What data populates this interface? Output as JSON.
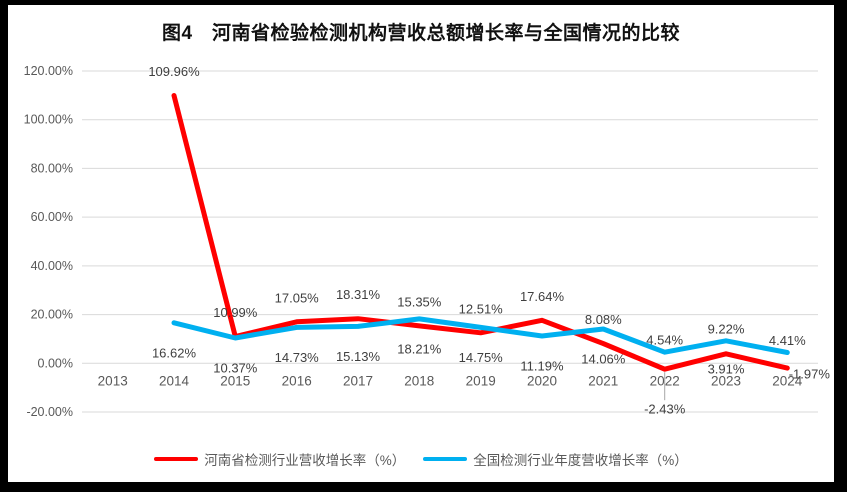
{
  "title": "图4　河南省检验检测机构营收总额增长率与全国情况的比较",
  "style": {
    "surround_background": "#000000",
    "panel_background": "#FFFFFF",
    "gridline_color": "#D9D9D9",
    "leader_line_color": "#A6A6A6",
    "data_label_color": "#3F3F3F",
    "axis_label_color": "#595959",
    "henan_red": "#FF0000",
    "national_blue": "#00B0F0"
  },
  "chart_data": {
    "type": "line",
    "title": "图4　河南省检验检测机构营收总额增长率与全国情况的比较",
    "categories": [
      "2013",
      "2014",
      "2015",
      "2016",
      "2017",
      "2018",
      "2019",
      "2020",
      "2021",
      "2022",
      "2023",
      "2024"
    ],
    "series": [
      {
        "name": "河南省检测行业营收增长率（%）",
        "color": "#FF0000",
        "values": [
          null,
          109.96,
          10.99,
          17.05,
          18.31,
          15.35,
          12.51,
          17.64,
          8.08,
          -2.43,
          3.91,
          -1.97
        ],
        "labels": [
          null,
          "109.96%",
          "10.99%",
          "17.05%",
          "18.31%",
          "15.35%",
          "12.51%",
          "17.64%",
          "8.08%",
          "-2.43%",
          "3.91%",
          "-1.97%"
        ],
        "label_placement": [
          null,
          "above",
          "above",
          "above",
          "above",
          "above",
          "above",
          "above",
          "above",
          "below-leader",
          "below-close",
          "right"
        ]
      },
      {
        "name": "全国检测行业年度营收增长率（%）",
        "color": "#00B0F0",
        "values": [
          null,
          16.62,
          10.37,
          14.73,
          15.13,
          18.21,
          14.75,
          11.19,
          14.06,
          4.54,
          9.22,
          4.41
        ],
        "labels": [
          null,
          "16.62%",
          "10.37%",
          "14.73%",
          "15.13%",
          "18.21%",
          "14.75%",
          "11.19%",
          "14.06%",
          "4.54%",
          "9.22%",
          "4.41%"
        ],
        "label_placement": [
          null,
          "below",
          "below",
          "below",
          "below",
          "below",
          "below",
          "below",
          "below",
          "above-close",
          "above-close",
          "above-close"
        ]
      }
    ],
    "y_axis": {
      "min": -20,
      "max": 120,
      "step": 20,
      "tick_labels": [
        "120.00%",
        "100.00%",
        "80.00%",
        "60.00%",
        "40.00%",
        "20.00%",
        "0.00%",
        "-20.00%"
      ]
    },
    "grid": true,
    "legend_position": "bottom"
  },
  "legend": {
    "items": [
      {
        "label": "河南省检测行业营收增长率（%）",
        "color": "#FF0000"
      },
      {
        "label": "全国检测行业年度营收增长率（%）",
        "color": "#00B0F0"
      }
    ]
  }
}
